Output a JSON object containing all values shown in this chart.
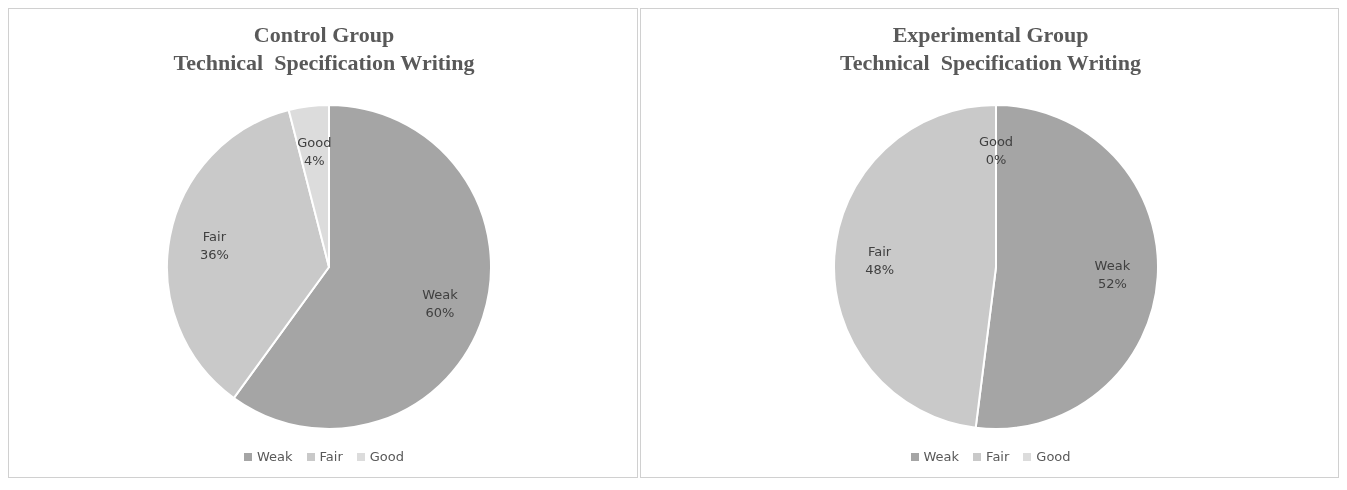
{
  "chart_data": [
    {
      "type": "pie",
      "title": "Control Group\nTechnical  Specification Writing",
      "categories": [
        "Weak",
        "Fair",
        "Good"
      ],
      "values": [
        60,
        36,
        4
      ],
      "value_labels": [
        "60%",
        "36%",
        "4%"
      ],
      "colors": [
        "#a5a5a5",
        "#c9c9c9",
        "#dcdcdc"
      ],
      "legend": "bottom"
    },
    {
      "type": "pie",
      "title": "Experimental Group\nTechnical  Specification Writing",
      "categories": [
        "Weak",
        "Fair",
        "Good"
      ],
      "values": [
        52,
        48,
        0
      ],
      "value_labels": [
        "52%",
        "48%",
        "0%"
      ],
      "colors": [
        "#a5a5a5",
        "#c9c9c9",
        "#dcdcdc"
      ],
      "legend": "bottom"
    }
  ]
}
